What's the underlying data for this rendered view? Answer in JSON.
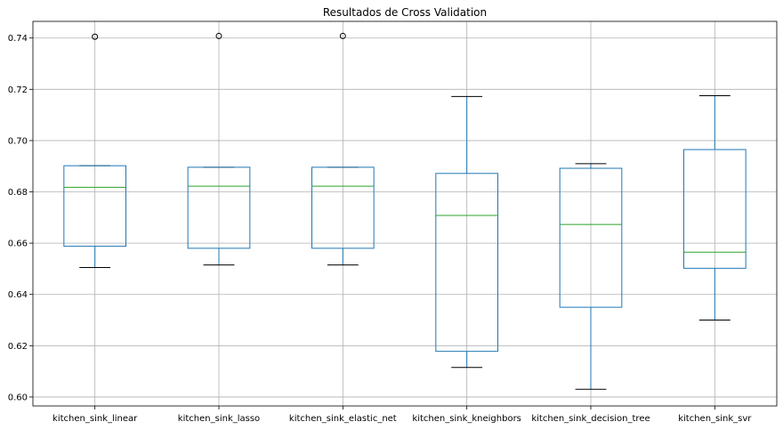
{
  "chart_data": {
    "type": "box",
    "title": "Resultados de Cross Validation",
    "xlabel": "",
    "ylabel": "",
    "ylim": [
      0.5965,
      0.7465
    ],
    "yticks": [
      0.6,
      0.62,
      0.64,
      0.66,
      0.68,
      0.7,
      0.72,
      0.74
    ],
    "ytick_labels": [
      "0.60",
      "0.62",
      "0.64",
      "0.66",
      "0.68",
      "0.70",
      "0.72",
      "0.74"
    ],
    "grid": true,
    "colors": {
      "box": "#1f77b4",
      "median": "#2ca02c",
      "whisker_cap": "#000000",
      "flier": "#000000"
    },
    "categories": [
      "kitchen_sink_linear",
      "kitchen_sink_lasso",
      "kitchen_sink_elastic_net",
      "kitchen_sink_kneighbors",
      "kitchen_sink_decision_tree",
      "kitchen_sink_svr"
    ],
    "boxes": [
      {
        "whislo": 0.6505,
        "q1": 0.6588,
        "med": 0.6818,
        "q3": 0.6902,
        "whishi": 0.6902,
        "fliers": [
          0.7405
        ]
      },
      {
        "whislo": 0.6515,
        "q1": 0.658,
        "med": 0.6822,
        "q3": 0.6896,
        "whishi": 0.6896,
        "fliers": [
          0.7408
        ]
      },
      {
        "whislo": 0.6515,
        "q1": 0.658,
        "med": 0.6822,
        "q3": 0.6896,
        "whishi": 0.6896,
        "fliers": [
          0.7408
        ]
      },
      {
        "whislo": 0.6115,
        "q1": 0.6178,
        "med": 0.6708,
        "q3": 0.6872,
        "whishi": 0.7172,
        "fliers": []
      },
      {
        "whislo": 0.603,
        "q1": 0.635,
        "med": 0.6673,
        "q3": 0.6892,
        "whishi": 0.691,
        "fliers": []
      },
      {
        "whislo": 0.63,
        "q1": 0.6502,
        "med": 0.6565,
        "q3": 0.6965,
        "whishi": 0.7175,
        "fliers": []
      }
    ]
  }
}
